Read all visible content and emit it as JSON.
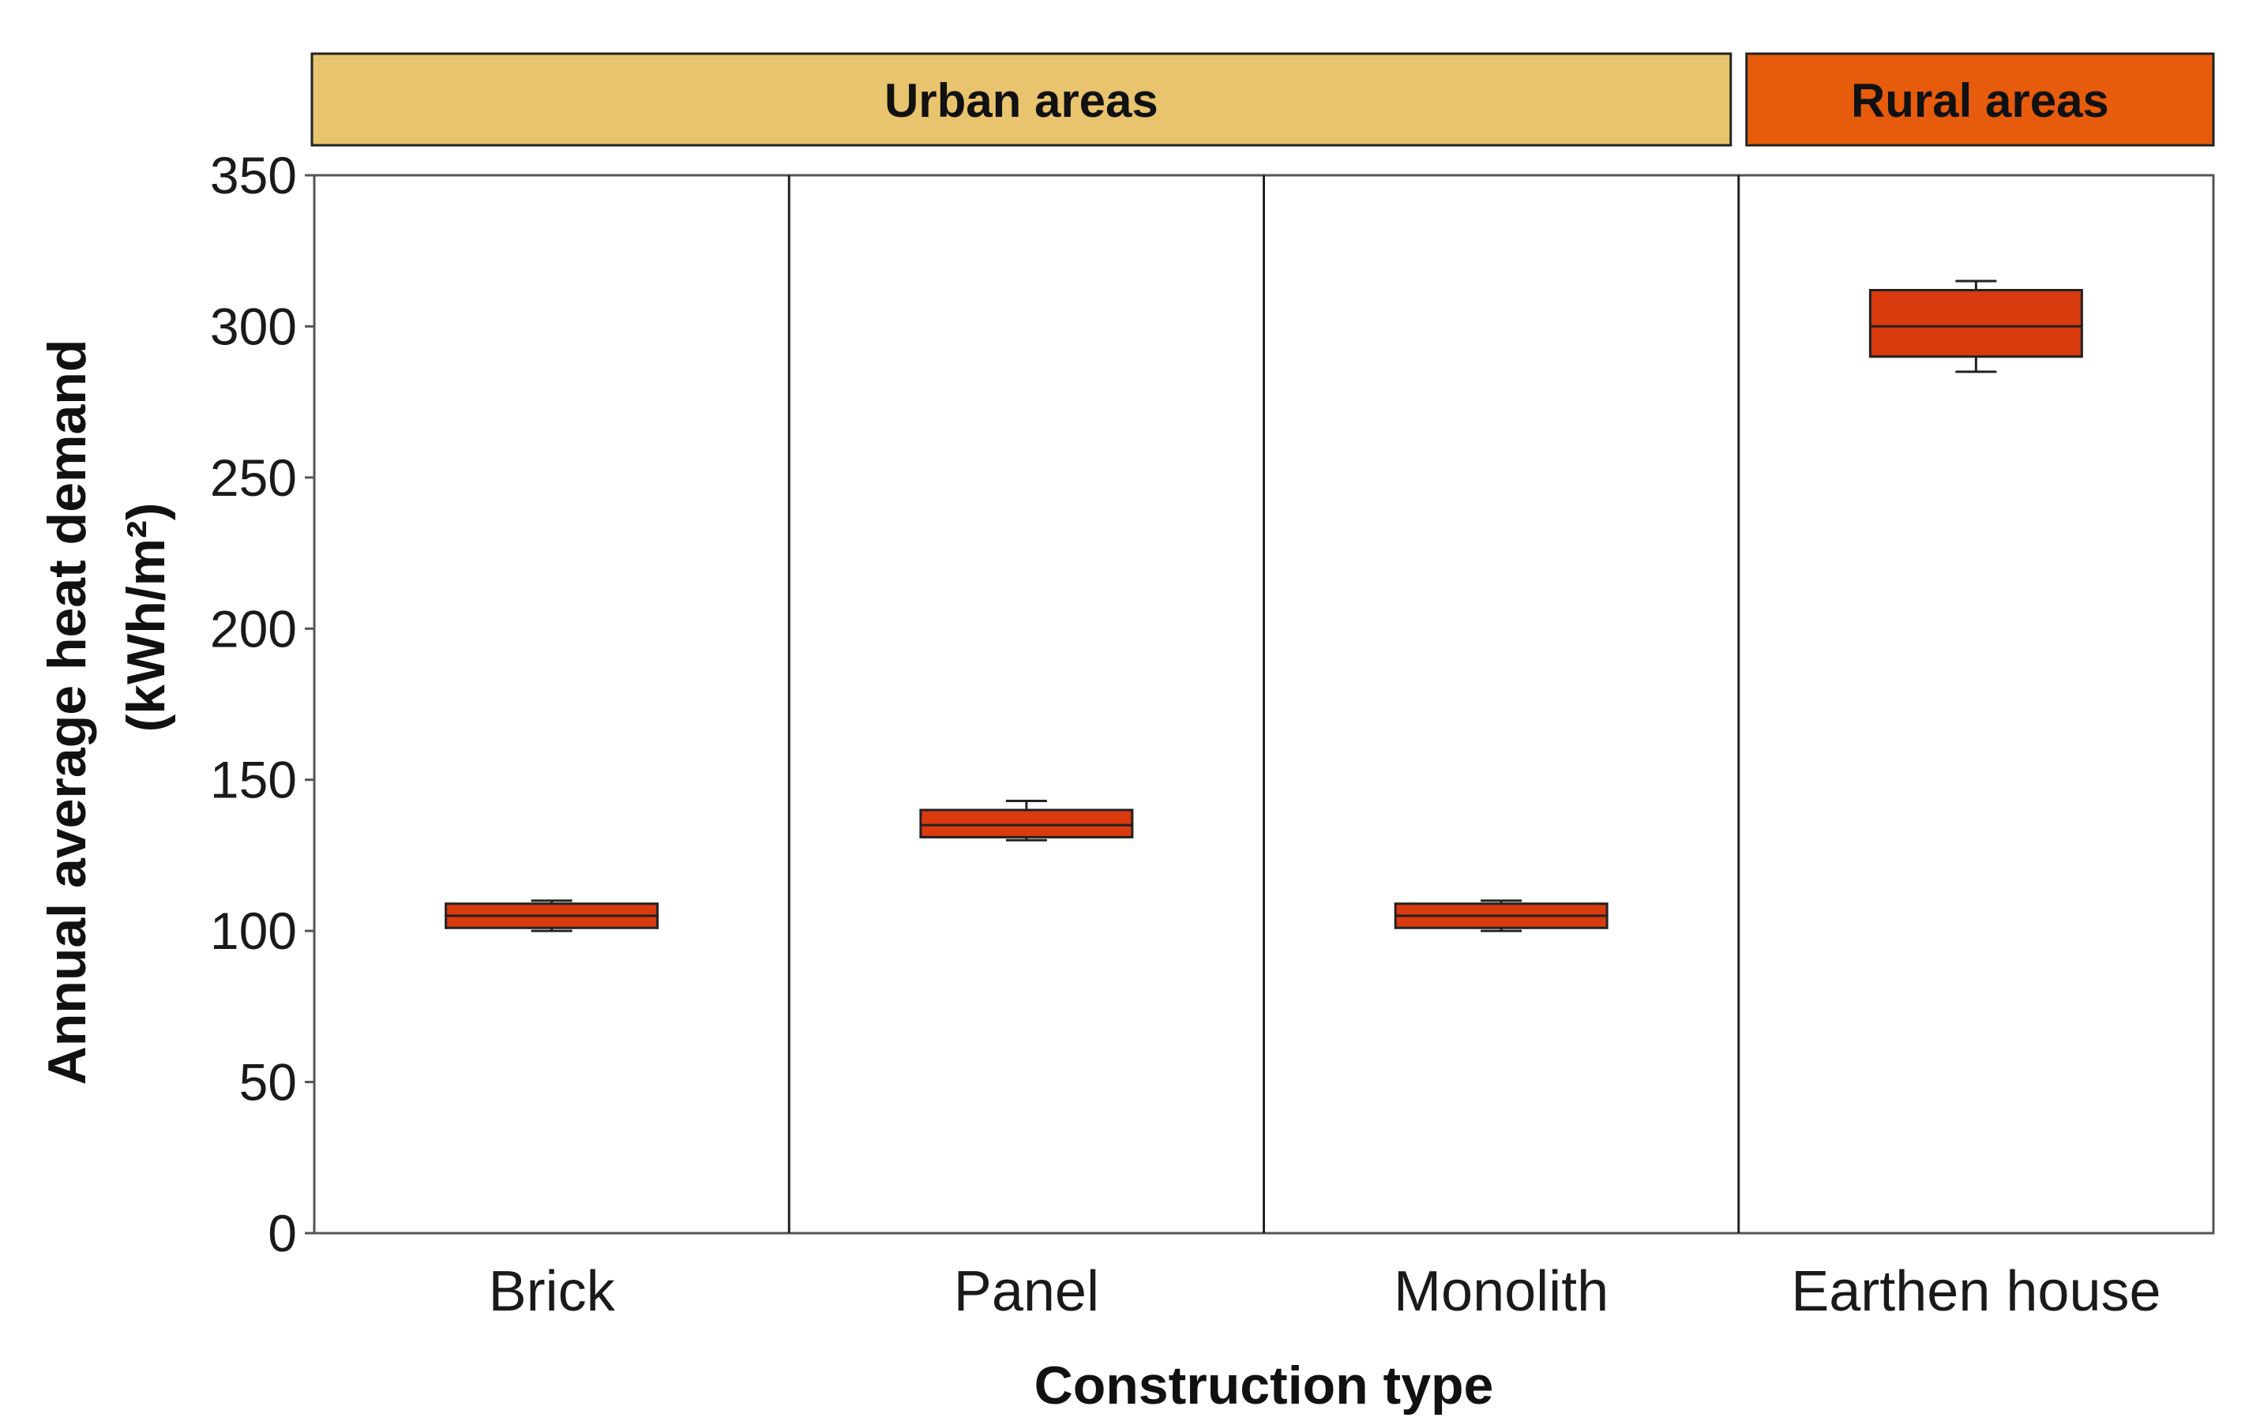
{
  "chart_data": {
    "type": "box",
    "xlabel": "Construction type",
    "ylabel_line1": "Annual average heat demand",
    "ylabel_line2": "(kWh/m²)",
    "ylim": [
      0,
      350
    ],
    "yticks": [
      0,
      50,
      100,
      150,
      200,
      250,
      300,
      350
    ],
    "grid": false,
    "groups": [
      {
        "label": "Urban areas",
        "color": "#E8C46E",
        "categories": [
          "Brick",
          "Panel",
          "Monolith"
        ]
      },
      {
        "label": "Rural areas",
        "color": "#E65C0C",
        "categories": [
          "Earthen house"
        ]
      }
    ],
    "categories": [
      "Brick",
      "Panel",
      "Monolith",
      "Earthen house"
    ],
    "box_color": "#D93A0E",
    "boxes": [
      {
        "category": "Brick",
        "min": 100,
        "q1": 101,
        "median": 105,
        "q3": 109,
        "max": 110
      },
      {
        "category": "Panel",
        "min": 130,
        "q1": 131,
        "median": 135,
        "q3": 140,
        "max": 143
      },
      {
        "category": "Monolith",
        "min": 100,
        "q1": 101,
        "median": 105,
        "q3": 109,
        "max": 110
      },
      {
        "category": "Earthen house",
        "min": 285,
        "q1": 290,
        "median": 300,
        "q3": 312,
        "max": 315
      }
    ]
  }
}
